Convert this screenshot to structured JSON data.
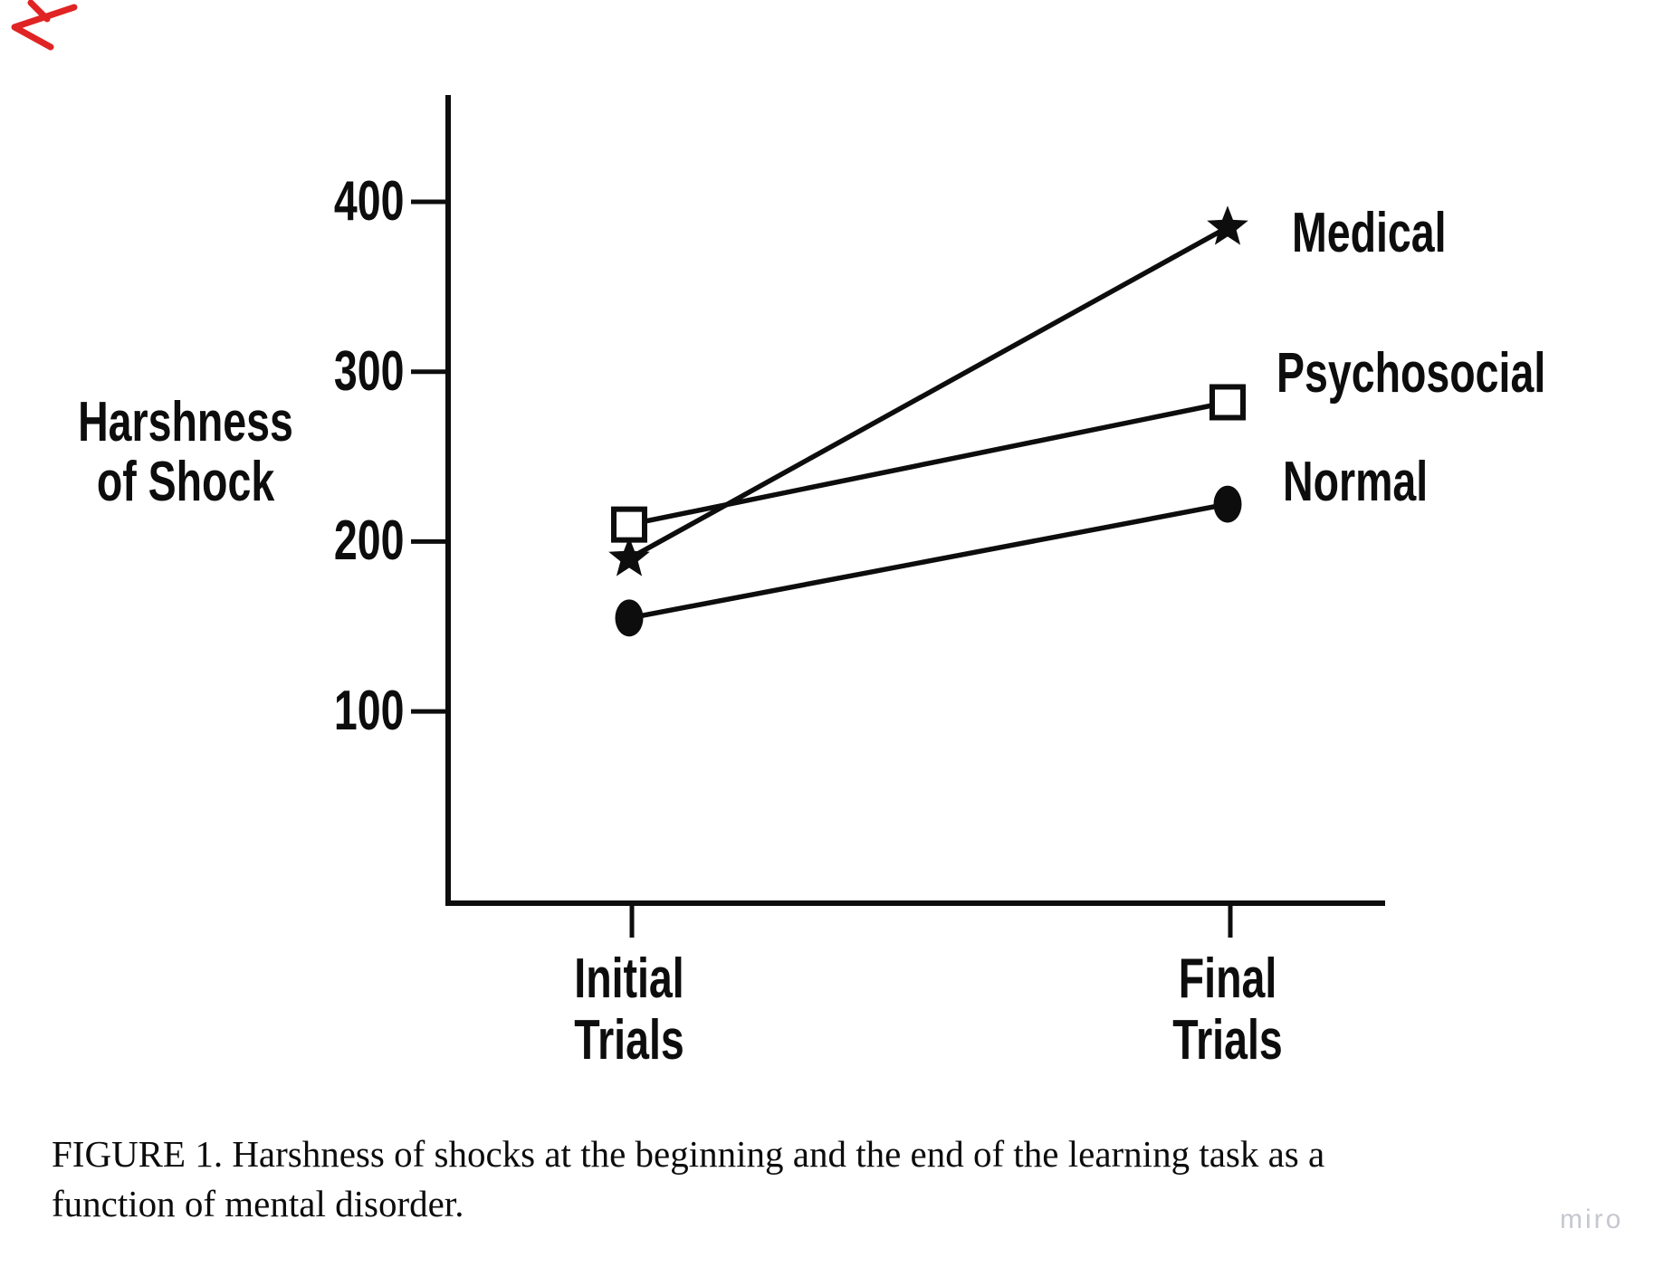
{
  "figure": {
    "caption_line1": "FIGURE 1. Harshness of shocks at the beginning and the end of the learning task as a",
    "caption_line2": "function of mental disorder.",
    "watermark": "miro"
  },
  "chart_data": {
    "type": "line",
    "title": "",
    "ylabel": "Harshness of Shock",
    "ylabel_lines": [
      "Harshness",
      "of Shock"
    ],
    "xlabel": "",
    "categories": [
      "Initial Trials",
      "Final Trials"
    ],
    "yticks": [
      400,
      300,
      200,
      100
    ],
    "ylim": [
      0,
      450
    ],
    "grid": false,
    "legend_position": "right of final data points",
    "series": [
      {
        "name": "Medical",
        "marker": "filled-star",
        "values": [
          190,
          385
        ]
      },
      {
        "name": "Psychosocial",
        "marker": "open-square",
        "values": [
          210,
          282
        ]
      },
      {
        "name": "Normal",
        "marker": "filled-circle",
        "values": [
          155,
          222
        ]
      }
    ],
    "ink_color": "#0d0d0d",
    "background": "#ffffff"
  },
  "annotations": {
    "red_pen_marks": "handwritten red pen strokes in top-left corner",
    "red_color": "#e02423"
  },
  "watermark_color": "#c6c8d0"
}
